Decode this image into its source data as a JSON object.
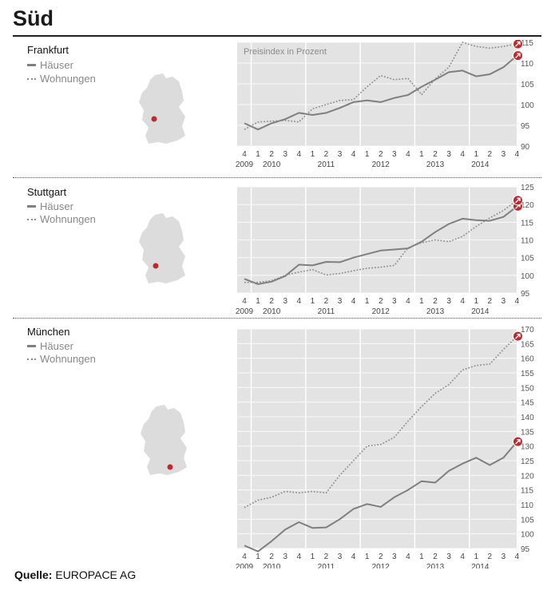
{
  "page_title": "Süd",
  "source_label": "Quelle:",
  "source_value": "EUROPACE AG",
  "legend": {
    "houses": "Häuser",
    "apartments": "Wohnungen"
  },
  "colors": {
    "houses": "#7f7f7f",
    "apartments": "#8c8c8c",
    "marker": "#c1272d",
    "plot_bg": "#e3e3e3"
  },
  "quarter_labels": [
    "4",
    "1",
    "2",
    "3",
    "4",
    "1",
    "2",
    "3",
    "4",
    "1",
    "2",
    "3",
    "4",
    "1",
    "2",
    "3",
    "4",
    "1",
    "2",
    "3",
    "4"
  ],
  "year_labels": [
    "2009",
    "2010",
    "2011",
    "2012",
    "2013",
    "2014"
  ],
  "chart_data": [
    {
      "type": "line",
      "city": "Frankfurt",
      "title": "Preisindex in Prozent",
      "ylim": [
        90,
        115
      ],
      "yticks": [
        90,
        95,
        100,
        105,
        110,
        115
      ],
      "grid": true,
      "series": [
        {
          "name": "Häuser",
          "style": "solid",
          "values": [
            95.5,
            94.0,
            95.5,
            96.5,
            98.0,
            97.5,
            98.0,
            99.2,
            100.6,
            101.0,
            100.6,
            101.6,
            102.3,
            104.3,
            106.0,
            107.8,
            108.2,
            106.8,
            107.3,
            109.0,
            111.8
          ]
        },
        {
          "name": "Wohnungen",
          "style": "dotted",
          "values": [
            94.0,
            95.8,
            96.0,
            96.2,
            95.8,
            99.0,
            100.0,
            101.0,
            101.2,
            104.3,
            107.0,
            106.0,
            106.3,
            102.4,
            106.2,
            109.0,
            115.0,
            114.0,
            113.6,
            114.0,
            114.6
          ]
        }
      ]
    },
    {
      "type": "line",
      "city": "Stuttgart",
      "title": "",
      "ylim": [
        95,
        125
      ],
      "yticks": [
        95,
        100,
        105,
        110,
        115,
        120,
        125
      ],
      "grid": true,
      "series": [
        {
          "name": "Häuser",
          "style": "solid",
          "values": [
            99.0,
            97.5,
            98.2,
            99.8,
            103.0,
            102.8,
            103.8,
            103.7,
            105.0,
            106.0,
            107.0,
            107.3,
            107.6,
            109.5,
            112.2,
            114.5,
            116.0,
            115.6,
            115.4,
            116.5,
            119.5
          ]
        },
        {
          "name": "Wohnungen",
          "style": "dotted",
          "values": [
            98.0,
            98.0,
            98.5,
            100.0,
            100.9,
            101.6,
            100.1,
            100.5,
            101.3,
            102.0,
            102.3,
            102.8,
            107.8,
            109.2,
            110.0,
            109.5,
            111.0,
            113.8,
            116.2,
            118.3,
            121.2
          ]
        }
      ]
    },
    {
      "type": "line",
      "city": "München",
      "title": "",
      "ylim": [
        95,
        170
      ],
      "yticks": [
        95,
        100,
        105,
        110,
        115,
        120,
        125,
        130,
        135,
        140,
        145,
        150,
        155,
        160,
        165,
        170
      ],
      "grid": true,
      "series": [
        {
          "name": "Häuser",
          "style": "solid",
          "values": [
            96.0,
            94.0,
            97.5,
            101.5,
            104.0,
            102.0,
            102.2,
            105.0,
            108.5,
            110.2,
            109.2,
            112.5,
            115.0,
            118.0,
            117.5,
            121.5,
            124.0,
            126.0,
            123.5,
            126.0,
            131.5
          ]
        },
        {
          "name": "Wohnungen",
          "style": "dotted",
          "values": [
            109.0,
            111.5,
            112.5,
            114.5,
            114.0,
            114.5,
            114.0,
            120.0,
            125.0,
            130.0,
            130.5,
            133.0,
            138.5,
            143.5,
            148.0,
            151.0,
            156.0,
            157.5,
            158.0,
            163.0,
            167.5
          ]
        }
      ]
    }
  ]
}
